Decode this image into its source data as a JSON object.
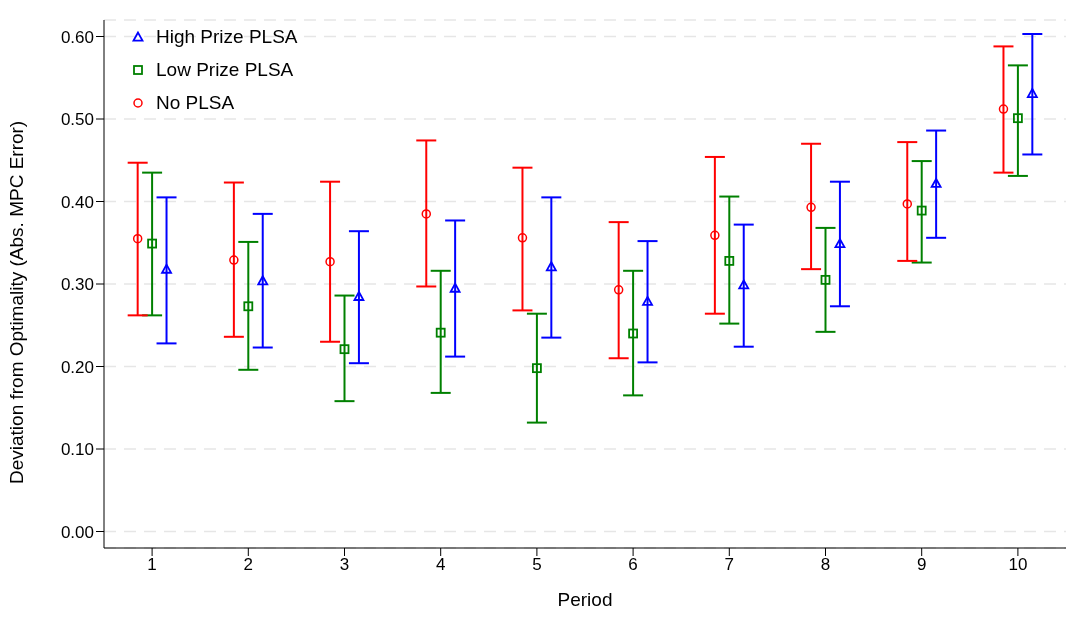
{
  "chart_data": {
    "type": "scatter",
    "xlabel": "Period",
    "ylabel": "Deviation from Optimality (Abs. MPC Error)",
    "xlim": [
      0.5,
      10.5
    ],
    "xticks": [
      1,
      2,
      3,
      4,
      5,
      6,
      7,
      8,
      9,
      10
    ],
    "ylim": [
      -0.02,
      0.62
    ],
    "yticks": [
      {
        "value": 0,
        "label": "0.00"
      },
      {
        "value": 0.1,
        "label": "0.10"
      },
      {
        "value": 0.2,
        "label": "0.20"
      },
      {
        "value": 0.3,
        "label": "0.30"
      },
      {
        "value": 0.4,
        "label": "0.40"
      },
      {
        "value": 0.5,
        "label": "0.50"
      },
      {
        "value": 0.6,
        "label": "0.60"
      }
    ],
    "grid": "y",
    "legend": "top left",
    "series": [
      {
        "name": "High Prize PLSA",
        "color": "#0000ff",
        "marker": "triangle",
        "x": [
          1.15,
          2.15,
          3.15,
          4.15,
          5.15,
          6.15,
          7.15,
          8.15,
          9.15,
          10.15
        ],
        "values": [
          0.318,
          0.304,
          0.285,
          0.295,
          0.321,
          0.279,
          0.299,
          0.349,
          0.422,
          0.531
        ],
        "errors": [
          [
            0.228,
            0.405
          ],
          [
            0.223,
            0.385
          ],
          [
            0.204,
            0.364
          ],
          [
            0.212,
            0.377
          ],
          [
            0.235,
            0.405
          ],
          [
            0.205,
            0.352
          ],
          [
            0.224,
            0.372
          ],
          [
            0.273,
            0.424
          ],
          [
            0.356,
            0.486
          ],
          [
            0.457,
            0.603
          ]
        ]
      },
      {
        "name": "Low Prize PLSA",
        "color": "#008000",
        "marker": "square",
        "x": [
          1,
          2,
          3,
          4,
          5,
          6,
          7,
          8,
          9,
          10
        ],
        "values": [
          0.349,
          0.273,
          0.221,
          0.241,
          0.198,
          0.24,
          0.328,
          0.305,
          0.389,
          0.501
        ],
        "errors": [
          [
            0.262,
            0.435
          ],
          [
            0.196,
            0.351
          ],
          [
            0.158,
            0.286
          ],
          [
            0.168,
            0.316
          ],
          [
            0.132,
            0.264
          ],
          [
            0.165,
            0.316
          ],
          [
            0.252,
            0.406
          ],
          [
            0.242,
            0.368
          ],
          [
            0.326,
            0.449
          ],
          [
            0.431,
            0.565
          ]
        ]
      },
      {
        "name": "No PLSA",
        "color": "#ff0000",
        "marker": "circle",
        "x": [
          0.85,
          1.85,
          2.85,
          3.85,
          4.85,
          5.85,
          6.85,
          7.85,
          8.85,
          9.85
        ],
        "values": [
          0.355,
          0.329,
          0.327,
          0.385,
          0.356,
          0.293,
          0.359,
          0.393,
          0.397,
          0.512
        ],
        "errors": [
          [
            0.262,
            0.447
          ],
          [
            0.236,
            0.423
          ],
          [
            0.23,
            0.424
          ],
          [
            0.297,
            0.474
          ],
          [
            0.268,
            0.441
          ],
          [
            0.21,
            0.375
          ],
          [
            0.264,
            0.454
          ],
          [
            0.318,
            0.47
          ],
          [
            0.328,
            0.472
          ],
          [
            0.435,
            0.588
          ]
        ]
      }
    ]
  }
}
